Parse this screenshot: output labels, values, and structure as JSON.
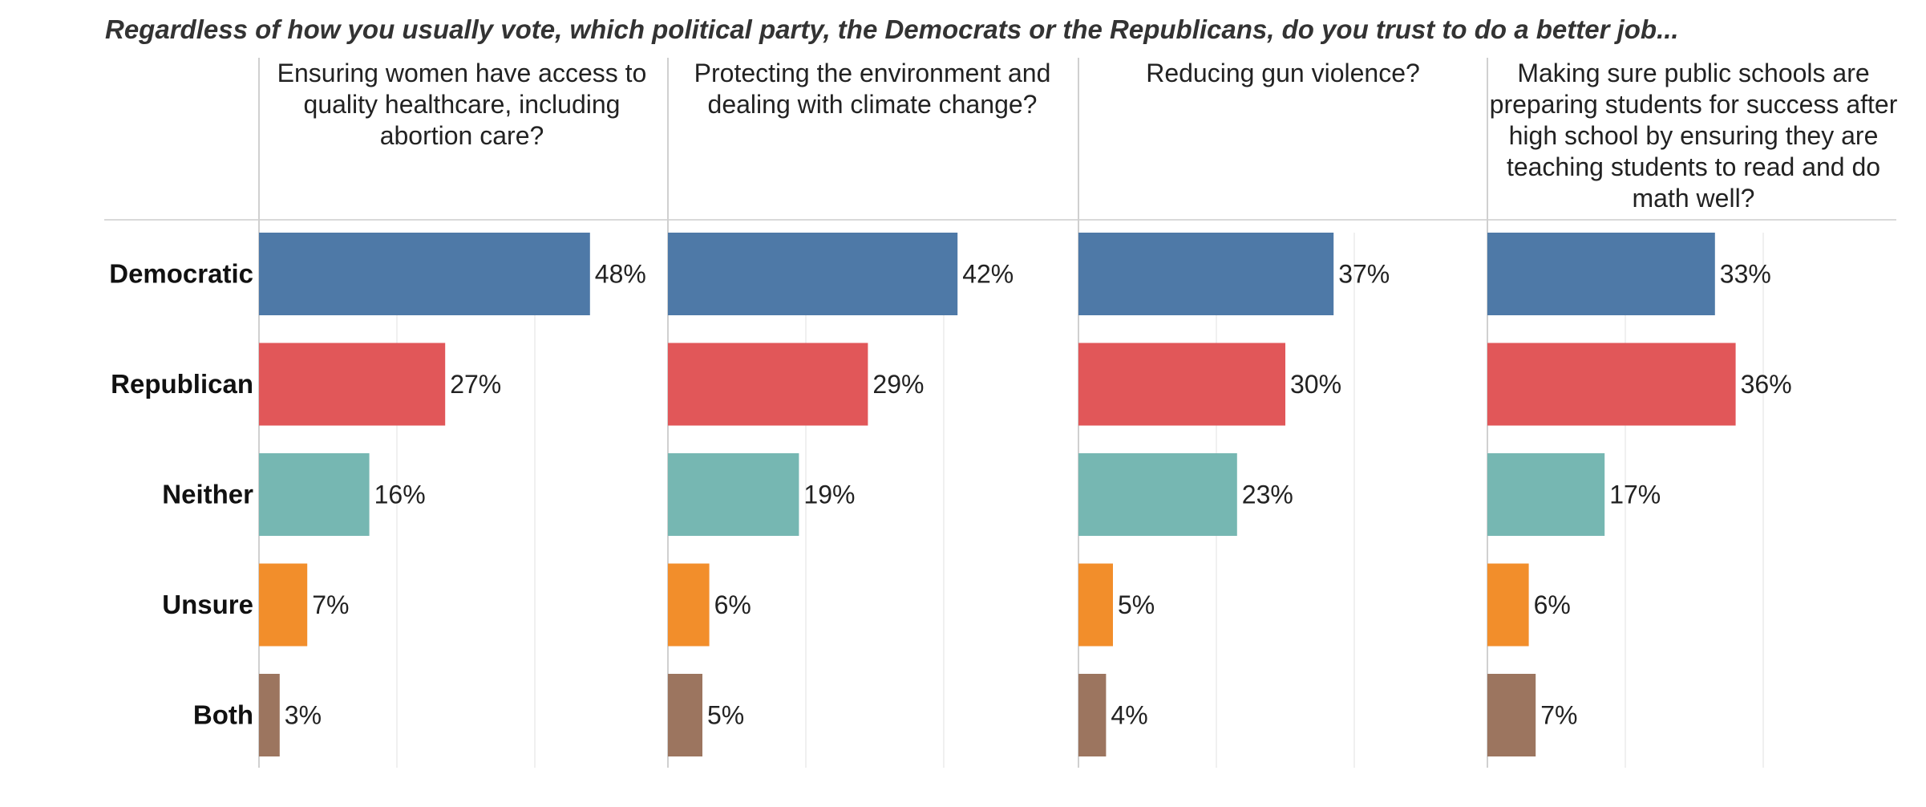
{
  "chart_data": {
    "type": "bar",
    "orientation": "horizontal",
    "title": "Regardless of how you usually vote, which political party, the Democrats or the Republicans, do you trust to do a better job...",
    "categories": [
      "Democratic",
      "Republican",
      "Neither",
      "Unsure",
      "Both"
    ],
    "colors": [
      "#4e79a7",
      "#e15759",
      "#76b7b2",
      "#f28e2b",
      "#9c755f"
    ],
    "xlim": [
      0,
      60
    ],
    "grid": true,
    "panels": [
      {
        "title": "Ensuring women have access to quality healthcare, including abortion care?",
        "values": [
          48,
          27,
          16,
          7,
          3
        ],
        "labels": [
          "48%",
          "27%",
          "16%",
          "7%",
          "3%"
        ]
      },
      {
        "title": "Protecting the environment and dealing with climate change?",
        "values": [
          42,
          29,
          19,
          6,
          5
        ],
        "labels": [
          "42%",
          "29%",
          "19%",
          "6%",
          "5%"
        ]
      },
      {
        "title": "Reducing gun violence?",
        "values": [
          37,
          30,
          23,
          5,
          4
        ],
        "labels": [
          "37%",
          "30%",
          "23%",
          "5%",
          "4%"
        ]
      },
      {
        "title": "Making sure public schools are preparing students for success after high school by ensuring they are teaching students to read and do math well?",
        "values": [
          33,
          36,
          17,
          6,
          7
        ],
        "labels": [
          "33%",
          "36%",
          "17%",
          "6%",
          "7%"
        ]
      }
    ]
  }
}
